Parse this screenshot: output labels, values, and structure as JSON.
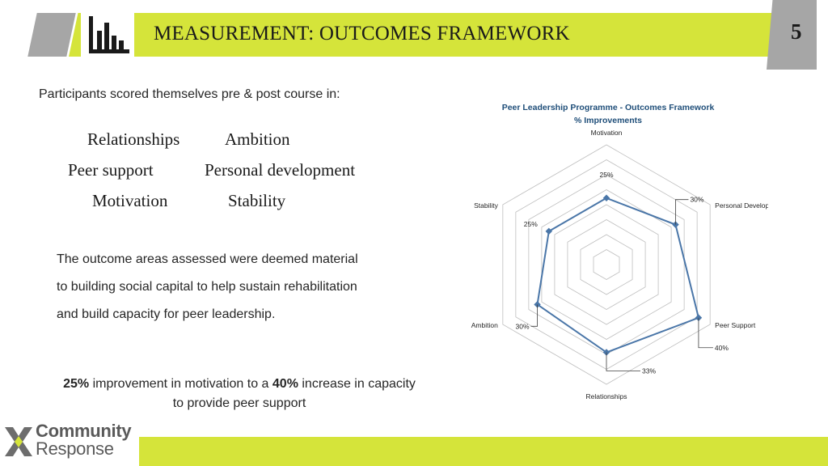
{
  "header": {
    "title": "MEASUREMENT: OUTCOMES FRAMEWORK",
    "page_number": "5",
    "logo_icon": "bar-chart-icon"
  },
  "intro": "Participants scored themselves pre & post course in:",
  "outcome_areas": [
    "Relationships",
    "Ambition",
    "Peer support",
    "Personal development",
    "Motivation",
    "Stability"
  ],
  "paragraph": [
    "The outcome areas assessed were deemed material",
    "to building social capital to help sustain rehabilitation",
    "and build capacity for peer leadership."
  ],
  "highlight": {
    "value1": "25%",
    "text1": " improvement in motivation to a ",
    "value2": "40%",
    "text2": " increase in capacity",
    "line2": "to provide peer support"
  },
  "brand": {
    "line1": "Community",
    "line2": "Response"
  },
  "colors": {
    "accent": "#d5e43a",
    "tab_gray": "#a6a6a6",
    "series": "#4a76a8",
    "chart_title": "#1f4e79"
  },
  "chart_data": {
    "type": "radar",
    "title": "Peer Leadership Programme - Outcomes Framework",
    "subtitle": "% Improvements",
    "axes": [
      "Motivation",
      "Personal Development",
      "Peer Support",
      "Relationships",
      "Ambition",
      "Stability"
    ],
    "series": [
      {
        "values": [
          25,
          30,
          40,
          33,
          30,
          25
        ]
      }
    ],
    "data_labels": [
      "25%",
      "30%",
      "40%",
      "33%",
      "30%",
      "25%"
    ],
    "range": [
      0,
      45
    ],
    "grid_rings": 8
  }
}
